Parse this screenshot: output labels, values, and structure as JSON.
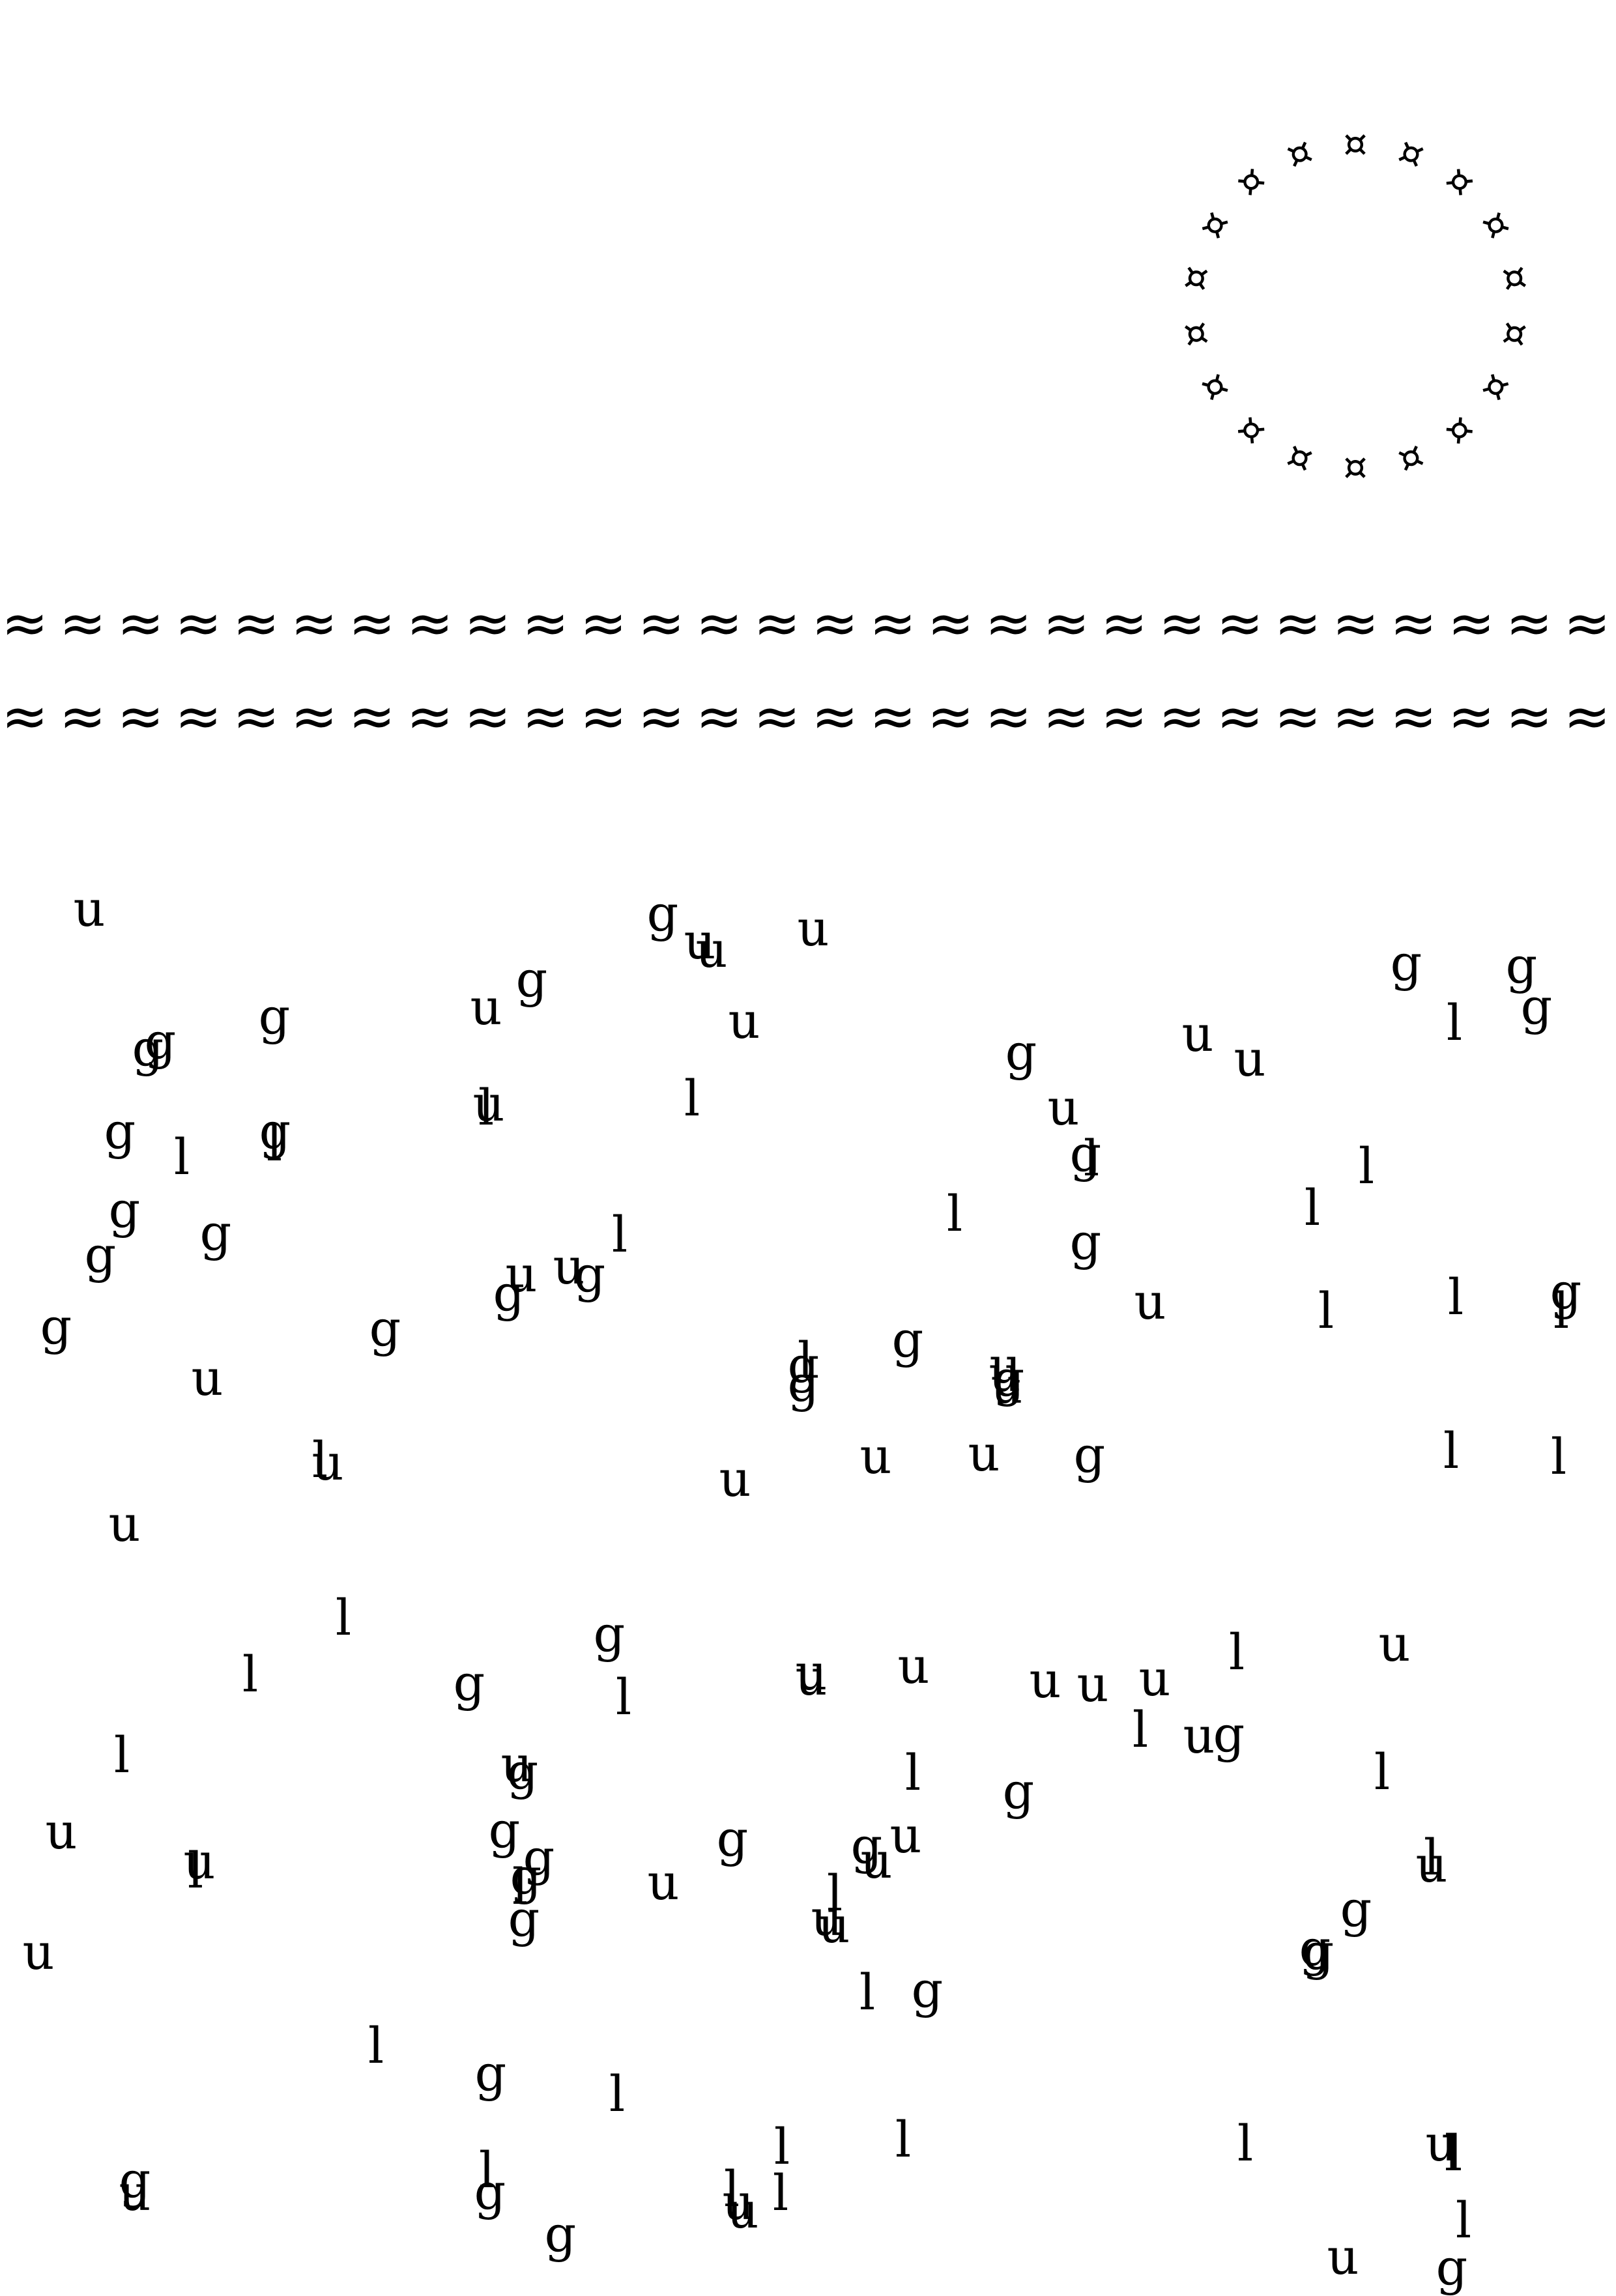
{
  "ring": {
    "glyph": "¤",
    "count": 18
  },
  "wave_rows": [
    {
      "glyph": "≈",
      "count": 28
    },
    {
      "glyph": "≈",
      "count": 28
    }
  ],
  "letters": [
    "u",
    "g",
    "u",
    "u",
    "u",
    "g",
    "g",
    "g",
    "g",
    "g",
    "u",
    "g",
    "u",
    "g",
    "u",
    "l",
    "l",
    "g",
    "u",
    "g",
    "l",
    "g",
    "l",
    "l",
    "u",
    "u",
    "g",
    "l",
    "l",
    "l",
    "l",
    "g",
    "g",
    "g",
    "u",
    "l",
    "u",
    "g",
    "g",
    "g",
    "u",
    "g",
    "g",
    "l",
    "l",
    "g",
    "g",
    "u",
    "l",
    "l",
    "u",
    "g",
    "u",
    "g",
    "g",
    "u",
    "l",
    "l",
    "u",
    "g",
    "l",
    "u",
    "u",
    "u",
    "u",
    "l",
    "l",
    "g",
    "u",
    "l",
    "g",
    "u",
    "u",
    "u",
    "l",
    "u",
    "u",
    "u",
    "l",
    "u",
    "g",
    "u",
    "g",
    "l",
    "g",
    "g",
    "l",
    "l",
    "l",
    "g",
    "g",
    "u",
    "u",
    "u",
    "l",
    "g",
    "g",
    "g",
    "u",
    "l",
    "g",
    "u",
    "g",
    "g",
    "l",
    "u",
    "l",
    "u",
    "u",
    "u",
    "g",
    "l",
    "g",
    "l",
    "l",
    "l",
    "u",
    "l",
    "l",
    "l",
    "u",
    "g",
    "l",
    "l",
    "l",
    "u",
    "g",
    "g",
    "u",
    "u",
    "l",
    "g"
  ]
}
